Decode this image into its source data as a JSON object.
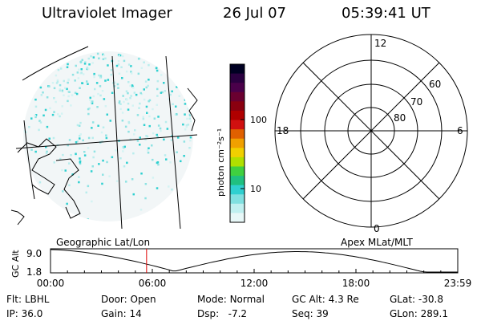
{
  "header": {
    "instrument": "Ultraviolet Imager",
    "date": "26 Jul 07",
    "time": "05:39:41 UT"
  },
  "colorbar": {
    "unit_label": "photon cm⁻²s⁻¹",
    "ticks": [
      "100",
      "10"
    ],
    "colors": [
      "#000022",
      "#2a0040",
      "#4a004a",
      "#6a0030",
      "#8a0010",
      "#b00000",
      "#d01010",
      "#e06000",
      "#f0a000",
      "#f0d000",
      "#b0e000",
      "#40d040",
      "#20c080",
      "#30d0d0",
      "#80e0e0",
      "#c0f0f0",
      "#e8f8f8"
    ]
  },
  "image_panel": {
    "label": "Geographic Lat/Lon",
    "pixel_color": "#30d0d0"
  },
  "polar_plot": {
    "label": "Apex MLat/MLT",
    "mlt_labels": {
      "top": "12",
      "right": "6",
      "bottom": "0",
      "left": "18"
    },
    "lat_labels": [
      "60",
      "70",
      "80"
    ]
  },
  "altitude_plot": {
    "ylabel": "GC Alt",
    "ymax": "9.0",
    "ymin": "1.8",
    "x_ticks": [
      "00:00",
      "06:00",
      "12:00",
      "18:00",
      "23:59"
    ],
    "marker_time": "05:39:41",
    "marker_color": "#e00000"
  },
  "status": {
    "row1": [
      {
        "key": "Flt:",
        "value": "LBHL"
      },
      {
        "key": "Door:",
        "value": "Open"
      },
      {
        "key": "Mode:",
        "value": "Normal"
      },
      {
        "key": "GC Alt:",
        "value": "4.3 Re"
      },
      {
        "key": "GLat:",
        "value": "-30.8"
      }
    ],
    "row2": [
      {
        "key": "IP:",
        "value": "36.0"
      },
      {
        "key": "Gain:",
        "value": "14"
      },
      {
        "key": "Dsp:",
        "value": "-7.2"
      },
      {
        "key": "Seq:",
        "value": "39"
      },
      {
        "key": "GLon:",
        "value": "289.1"
      }
    ]
  }
}
